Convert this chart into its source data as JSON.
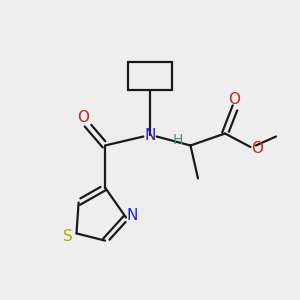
{
  "bg_color": "#eeeeee",
  "bond_color": "#1a1a1a",
  "N_color": "#2222cc",
  "O_color": "#cc2222",
  "S_color": "#aaaa00",
  "H_color": "#448888",
  "line_width": 1.6,
  "figsize": [
    3.0,
    3.0
  ],
  "dpi": 100,
  "xlim": [
    0,
    10
  ],
  "ylim": [
    0,
    10
  ]
}
